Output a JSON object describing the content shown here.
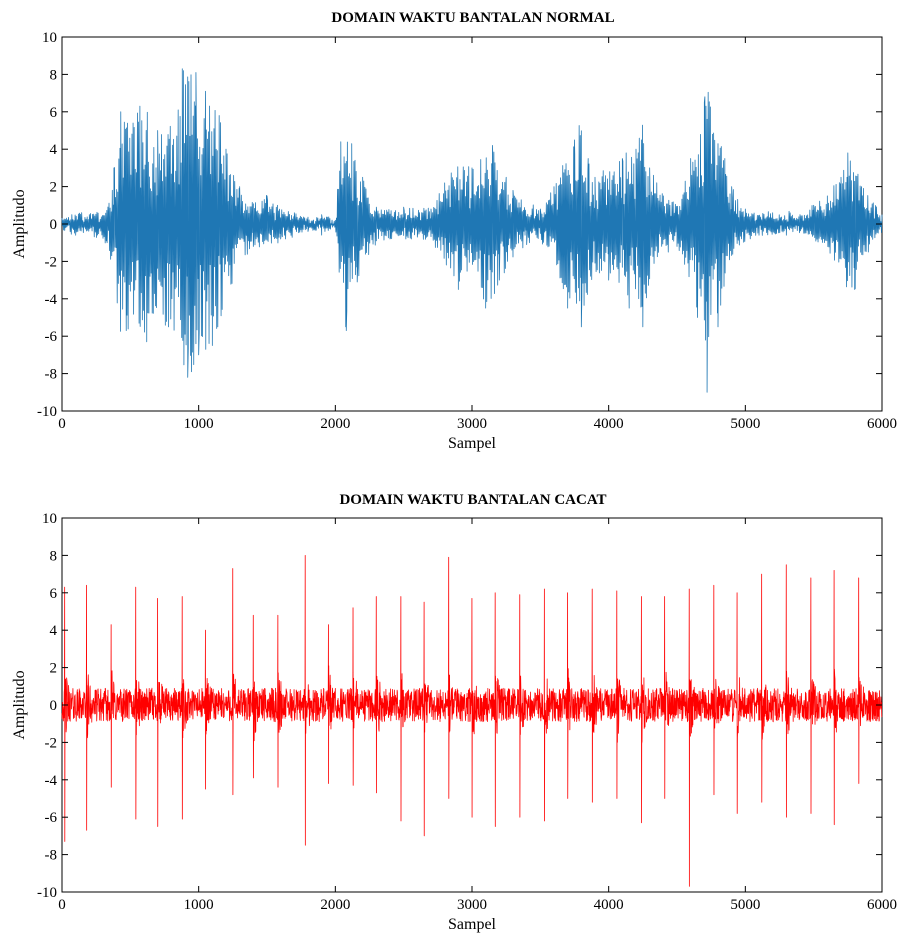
{
  "chart_data": [
    {
      "type": "line",
      "title": "DOMAIN WAKTU BANTALAN NORMAL",
      "xlabel": "Sampel",
      "ylabel": "Amplitudo",
      "xlim": [
        0,
        6000
      ],
      "ylim": [
        -10,
        10
      ],
      "xticks": [
        0,
        1000,
        2000,
        3000,
        4000,
        5000,
        6000
      ],
      "yticks": [
        -10,
        -8,
        -6,
        -4,
        -2,
        0,
        2,
        4,
        6,
        8,
        10
      ],
      "grid": false,
      "color": "#1f77b4",
      "series": [
        {
          "x": [
            0,
            100,
            200,
            330,
            380,
            430,
            470,
            520,
            570,
            620,
            700,
            780,
            850,
            880,
            920,
            980,
            1000,
            1050,
            1100,
            1150,
            1200,
            1300,
            1400,
            1500,
            1600,
            1700,
            1800,
            1900,
            2000,
            2040,
            2080,
            2120,
            2160,
            2200,
            2300,
            2400,
            2500,
            2600,
            2700,
            2800,
            2900,
            3000,
            3100,
            3150,
            3200,
            3250,
            3300,
            3400,
            3500,
            3600,
            3700,
            3750,
            3800,
            3850,
            3900,
            4000,
            4100,
            4150,
            4200,
            4250,
            4300,
            4400,
            4500,
            4600,
            4650,
            4700,
            4720,
            4760,
            4800,
            4850,
            4900,
            5000,
            5100,
            5200,
            5300,
            5400,
            5500,
            5600,
            5700,
            5750,
            5800,
            5850,
            5900,
            6000
          ],
          "y": [
            0.3,
            -0.6,
            0.5,
            -1.0,
            3.0,
            6.0,
            -5.7,
            5.4,
            6.3,
            -6.3,
            5.0,
            -5.5,
            6.1,
            8.3,
            -8.2,
            8.1,
            -7.0,
            7.1,
            -6.5,
            5.8,
            4.0,
            2.0,
            -1.2,
            1.5,
            -0.8,
            0.6,
            -0.4,
            0.5,
            0.2,
            4.4,
            -5.7,
            4.3,
            -3.1,
            2.5,
            0.9,
            -0.8,
            0.9,
            -0.7,
            0.8,
            2.2,
            -3.5,
            3.0,
            -4.5,
            4.2,
            -3.0,
            2.5,
            1.8,
            -1.1,
            0.8,
            2.0,
            -4.5,
            4.5,
            -5.5,
            3.5,
            2.5,
            -3.0,
            3.5,
            -4.5,
            4.0,
            -5.5,
            3.0,
            1.5,
            -1.2,
            3.5,
            -5.0,
            6.5,
            -9.0,
            4.8,
            -5.5,
            3.5,
            2.0,
            0.8,
            -0.6,
            0.5,
            -0.6,
            0.5,
            1.0,
            1.5,
            2.5,
            3.8,
            -3.5,
            2.0,
            -1.5,
            0.4
          ]
        }
      ]
    },
    {
      "type": "line",
      "title": "DOMAIN WAKTU BANTALAN CACAT",
      "xlabel": "Sampel",
      "ylabel": "Amplitudo",
      "xlim": [
        0,
        6000
      ],
      "ylim": [
        -10,
        10
      ],
      "xticks": [
        0,
        1000,
        2000,
        3000,
        4000,
        5000,
        6000
      ],
      "yticks": [
        -10,
        -8,
        -6,
        -4,
        -2,
        0,
        2,
        4,
        6,
        8,
        10
      ],
      "grid": false,
      "color": "#ff0000",
      "series": [
        {
          "x": [
            20,
            180,
            360,
            540,
            700,
            880,
            1050,
            1250,
            1400,
            1580,
            1780,
            1950,
            2130,
            2300,
            2480,
            2650,
            2830,
            3000,
            3170,
            3350,
            3530,
            3700,
            3880,
            4060,
            4240,
            4410,
            4590,
            4770,
            4940,
            5120,
            5300,
            5480,
            5650,
            5830
          ],
          "peak": [
            6.3,
            6.4,
            4.3,
            6.3,
            5.7,
            5.8,
            4.0,
            7.3,
            4.8,
            4.8,
            8.0,
            4.3,
            5.2,
            5.8,
            5.8,
            5.5,
            7.9,
            5.7,
            6.0,
            5.9,
            6.2,
            6.0,
            6.2,
            6.1,
            5.8,
            5.8,
            6.2,
            6.4,
            6.0,
            7.0,
            7.5,
            6.8,
            7.2,
            6.8
          ],
          "trough": [
            -7.3,
            -6.7,
            -4.4,
            -6.1,
            -6.5,
            -6.1,
            -4.5,
            -4.8,
            -3.9,
            -4.4,
            -7.5,
            -4.2,
            -4.3,
            -4.7,
            -6.2,
            -7.0,
            -5.0,
            -6.0,
            -6.5,
            -6.0,
            -6.2,
            -5.0,
            -5.2,
            -5.0,
            -6.3,
            -5.0,
            -9.7,
            -4.8,
            -5.8,
            -5.2,
            -6.0,
            -5.8,
            -6.4,
            -4.2
          ]
        }
      ]
    }
  ]
}
